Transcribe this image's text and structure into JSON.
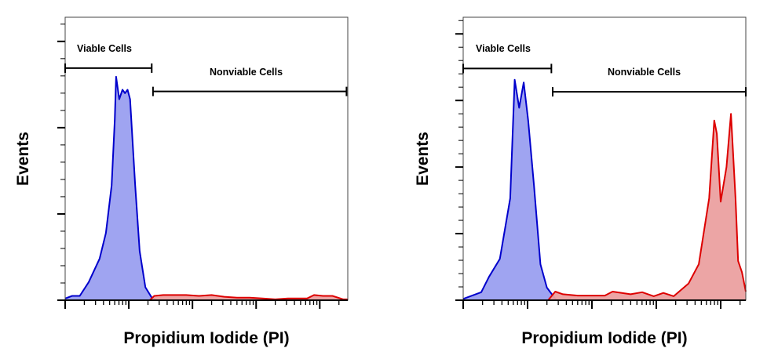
{
  "chart_data": [
    {
      "type": "area",
      "xlabel": "Propidium Iodide (PI)",
      "ylabel": "Events",
      "x_scale": "log",
      "xlim": [
        0,
        4.44
      ],
      "ylim": [
        0,
        3.28
      ],
      "y_major_ticks": 3,
      "grid": false,
      "gates": [
        {
          "label": "Viable Cells",
          "x": [
            0,
            1.36
          ],
          "y": 2.69
        },
        {
          "label": "Nonviable Cells",
          "x": [
            1.38,
            4.42
          ],
          "y": 2.42
        }
      ],
      "series": [
        {
          "color": "#0000cc",
          "fill": "#9a9ff0",
          "x": [
            0,
            0.11,
            0.23,
            0.37,
            0.54,
            0.64,
            0.73,
            0.78,
            0.8,
            0.85,
            0.9,
            0.94,
            0.98,
            1.02,
            1.1,
            1.17,
            1.26,
            1.36,
            1.44
          ],
          "y": [
            0.02,
            0.05,
            0.05,
            0.21,
            0.48,
            0.78,
            1.33,
            2.09,
            2.59,
            2.33,
            2.44,
            2.4,
            2.44,
            2.33,
            1.33,
            0.57,
            0.15,
            0.03,
            0
          ]
        },
        {
          "color": "#dd0000",
          "fill": "#eba0a0",
          "x": [
            1.33,
            1.4,
            1.54,
            1.7,
            1.9,
            2.1,
            2.3,
            2.5,
            2.7,
            2.9,
            3.1,
            3.3,
            3.5,
            3.7,
            3.8,
            3.91,
            4.05,
            4.2,
            4.37,
            4.44
          ],
          "y": [
            0,
            0.05,
            0.06,
            0.06,
            0.06,
            0.05,
            0.06,
            0.04,
            0.03,
            0.03,
            0.02,
            0.01,
            0.02,
            0.02,
            0.02,
            0.06,
            0.05,
            0.05,
            0.01,
            0.01
          ]
        }
      ]
    },
    {
      "type": "area",
      "xlabel": "Propidium Iodide (PI)",
      "ylabel": "Events",
      "x_scale": "log",
      "xlim": [
        0,
        4.39
      ],
      "ylim": [
        0,
        4.25
      ],
      "y_major_ticks": 4,
      "grid": false,
      "gates": [
        {
          "label": "Viable Cells",
          "x": [
            0,
            1.37
          ],
          "y": 3.48
        },
        {
          "label": "Nonviable Cells",
          "x": [
            1.39,
            4.39
          ],
          "y": 3.13
        }
      ],
      "series": [
        {
          "color": "#0000cc",
          "fill": "#9a9ff0",
          "x": [
            0,
            0.28,
            0.4,
            0.57,
            0.73,
            0.8,
            0.87,
            0.94,
            1.01,
            1.1,
            1.2,
            1.3,
            1.44
          ],
          "y": [
            0.02,
            0.12,
            0.35,
            0.62,
            1.53,
            3.31,
            2.89,
            3.27,
            2.7,
            1.72,
            0.54,
            0.19,
            0.01
          ]
        },
        {
          "color": "#dd0000",
          "fill": "#eba0a0",
          "x": [
            1.32,
            1.43,
            1.55,
            1.78,
            2.2,
            2.32,
            2.6,
            2.78,
            2.96,
            3.11,
            3.27,
            3.5,
            3.66,
            3.82,
            3.9,
            3.94,
            4.0,
            4.09,
            4.16,
            4.23,
            4.27,
            4.33,
            4.39
          ],
          "y": [
            0,
            0.13,
            0.09,
            0.07,
            0.07,
            0.13,
            0.09,
            0.12,
            0.06,
            0.11,
            0.06,
            0.25,
            0.54,
            1.53,
            2.7,
            2.5,
            1.48,
            2.0,
            2.8,
            1.53,
            0.59,
            0.42,
            0.13
          ]
        }
      ]
    }
  ]
}
